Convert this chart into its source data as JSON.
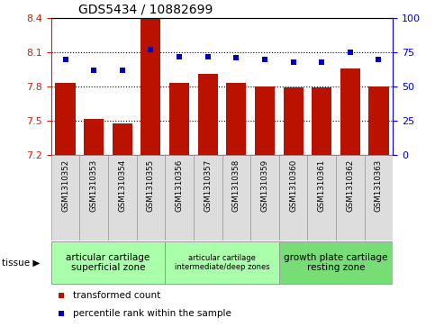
{
  "title": "GDS5434 / 10882699",
  "samples": [
    "GSM1310352",
    "GSM1310353",
    "GSM1310354",
    "GSM1310355",
    "GSM1310356",
    "GSM1310357",
    "GSM1310358",
    "GSM1310359",
    "GSM1310360",
    "GSM1310361",
    "GSM1310362",
    "GSM1310363"
  ],
  "bar_values": [
    7.83,
    7.52,
    7.48,
    8.39,
    7.83,
    7.91,
    7.83,
    7.8,
    7.79,
    7.79,
    7.96,
    7.8
  ],
  "scatter_values": [
    70,
    62,
    62,
    77,
    72,
    72,
    71,
    70,
    68,
    68,
    75,
    70
  ],
  "ylim_left": [
    7.2,
    8.4
  ],
  "ylim_right": [
    0,
    100
  ],
  "yticks_left": [
    7.2,
    7.5,
    7.8,
    8.1,
    8.4
  ],
  "yticks_right": [
    0,
    25,
    50,
    75,
    100
  ],
  "hlines": [
    7.5,
    7.8,
    8.1
  ],
  "bar_color": "#bb1100",
  "scatter_color": "#0000bb",
  "bar_bottom": 7.2,
  "group_colors": [
    "#aaffaa",
    "#aaffaa",
    "#77dd77"
  ],
  "group_texts": [
    "articular cartilage\nsuperficial zone",
    "articular cartilage\nintermediate/deep zones",
    "growth plate cartilage\nresting zone"
  ],
  "group_ranges": [
    [
      0,
      3
    ],
    [
      4,
      7
    ],
    [
      8,
      11
    ]
  ],
  "group_fontsizes": [
    7.5,
    6.0,
    7.5
  ],
  "tissue_label": "tissue",
  "legend_bar_label": "transformed count",
  "legend_scatter_label": "percentile rank within the sample",
  "tick_color_left": "#cc2200",
  "tick_color_right": "#0000cc",
  "sample_box_color": "#dddddd",
  "border_color": "#999999",
  "title_fontsize": 10,
  "bar_width": 0.7,
  "xlim": [
    -0.5,
    11.5
  ]
}
